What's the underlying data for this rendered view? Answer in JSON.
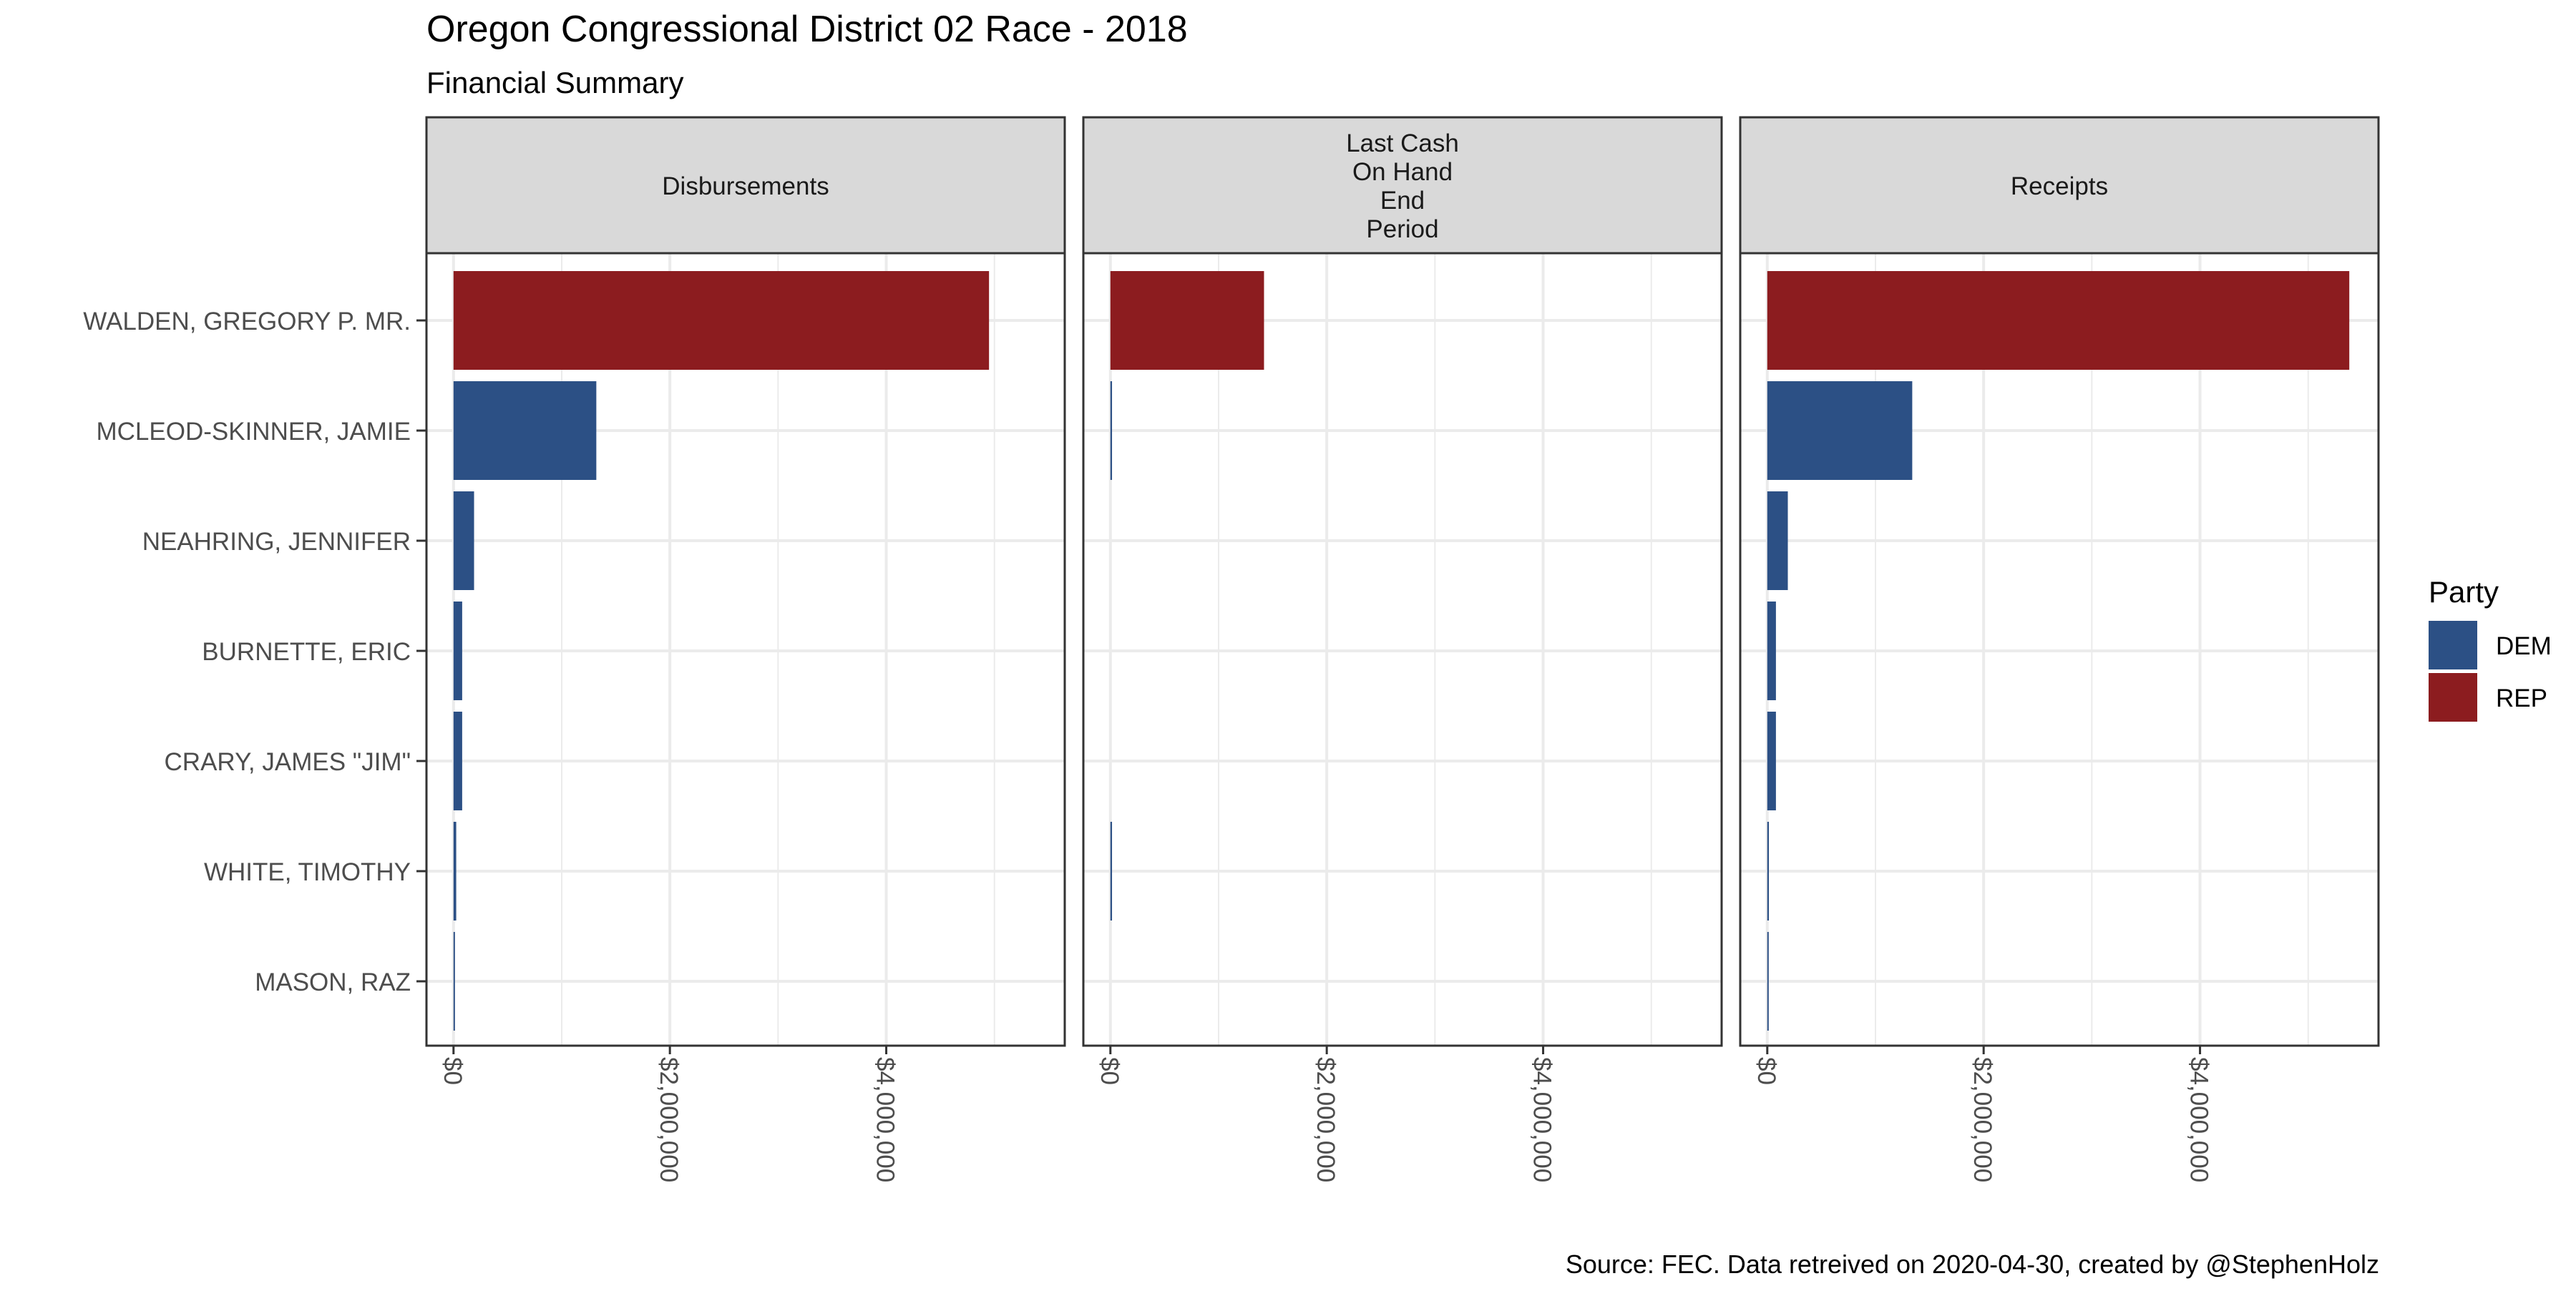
{
  "chart_data": {
    "type": "bar",
    "orientation": "horizontal",
    "title": "Oregon Congressional District 02 Race - 2018",
    "subtitle": "Financial Summary",
    "caption": "Source: FEC. Data retreived on 2020-04-30, created by @StephenHolz",
    "facets": [
      {
        "label": [
          "Disbursements"
        ]
      },
      {
        "label": [
          "Last Cash",
          "On Hand",
          "End",
          "Period"
        ]
      },
      {
        "label": [
          "Receipts"
        ]
      }
    ],
    "categories": [
      "WALDEN, GREGORY P. MR.",
      "MCLEOD-SKINNER, JAMIE",
      "NEAHRING, JENNIFER",
      "BURNETTE, ERIC",
      "CRARY, JAMES \"JIM\"",
      "WHITE, TIMOTHY",
      "MASON, RAZ"
    ],
    "party": [
      "REP",
      "DEM",
      "DEM",
      "DEM",
      "DEM",
      "DEM",
      "DEM"
    ],
    "series": [
      {
        "values": [
          4950000,
          1320000,
          190000,
          80000,
          80000,
          25000,
          8000
        ]
      },
      {
        "values": [
          1420000,
          15000,
          0,
          0,
          0,
          15000,
          0
        ]
      },
      {
        "values": [
          5380000,
          1340000,
          190000,
          80000,
          80000,
          15000,
          8000
        ]
      }
    ],
    "xlim": [
      -250000,
      5650000
    ],
    "x_ticks": [
      0,
      2000000,
      4000000
    ],
    "x_tick_labels": [
      "$0",
      "$2,000,000",
      "$4,000,000"
    ],
    "x_minor_ticks": [
      1000000,
      3000000,
      5000000
    ],
    "grid": true,
    "legend": {
      "title": "Party",
      "position": "right",
      "entries": [
        {
          "name": "DEM",
          "color": "#2c5085"
        },
        {
          "name": "REP",
          "color": "#8c1c1f"
        }
      ]
    },
    "colors": {
      "DEM": "#2c5085",
      "REP": "#8c1c1f"
    }
  }
}
